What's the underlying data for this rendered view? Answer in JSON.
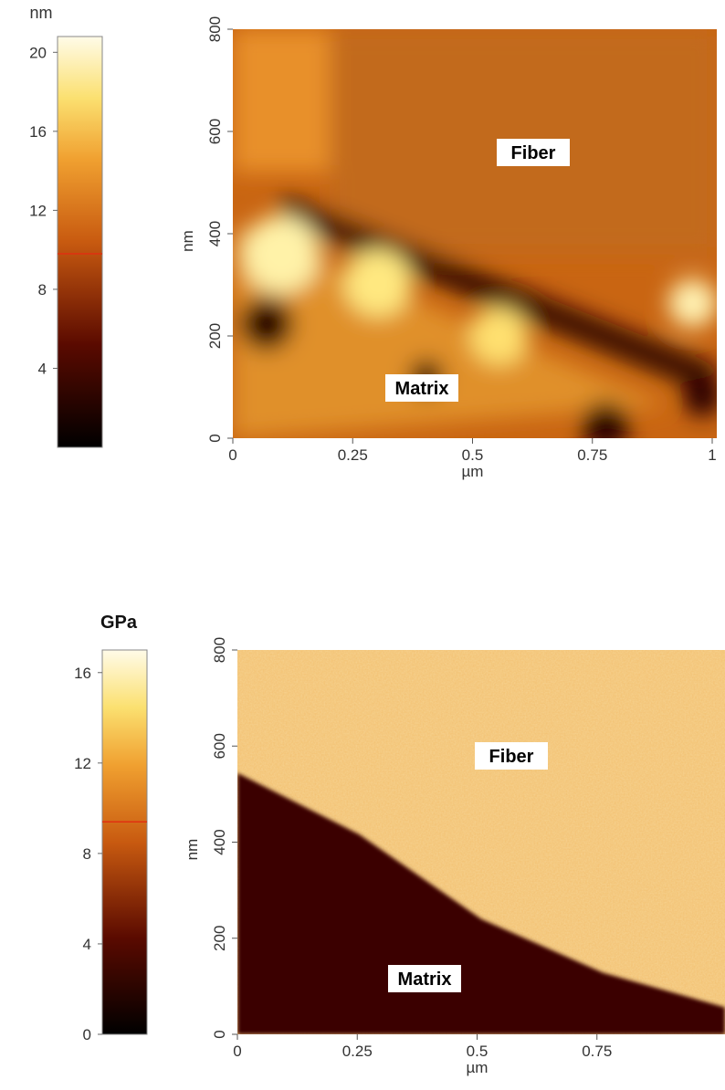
{
  "chart_data": [
    {
      "type": "heatmap",
      "colorbar": {
        "unit": "nm",
        "lim": [
          0,
          20.8
        ],
        "ticks": [
          4,
          8,
          12,
          16,
          20
        ],
        "marker": 9.8
      },
      "xlim": [
        0,
        1
      ],
      "xticks": [
        0,
        0.25,
        0.5,
        0.75,
        1
      ],
      "xlabel": "µm",
      "ylim": [
        0,
        800
      ],
      "yticks": [
        0,
        200,
        400,
        600,
        800
      ],
      "ylabel": "nm",
      "annotations": [
        "Fiber",
        "Matrix"
      ]
    },
    {
      "type": "heatmap",
      "colorbar": {
        "unit": "GPa",
        "lim": [
          0,
          17
        ],
        "ticks": [
          0,
          4,
          8,
          12,
          16
        ],
        "marker": 9.4
      },
      "xlim": [
        0,
        1
      ],
      "xticks": [
        0,
        0.25,
        0.5,
        0.75
      ],
      "xlabel": "µm",
      "ylim": [
        0,
        800
      ],
      "yticks": [
        0,
        200,
        400,
        600,
        800
      ],
      "ylabel": "nm",
      "annotations": [
        "Fiber",
        "Matrix"
      ]
    }
  ]
}
